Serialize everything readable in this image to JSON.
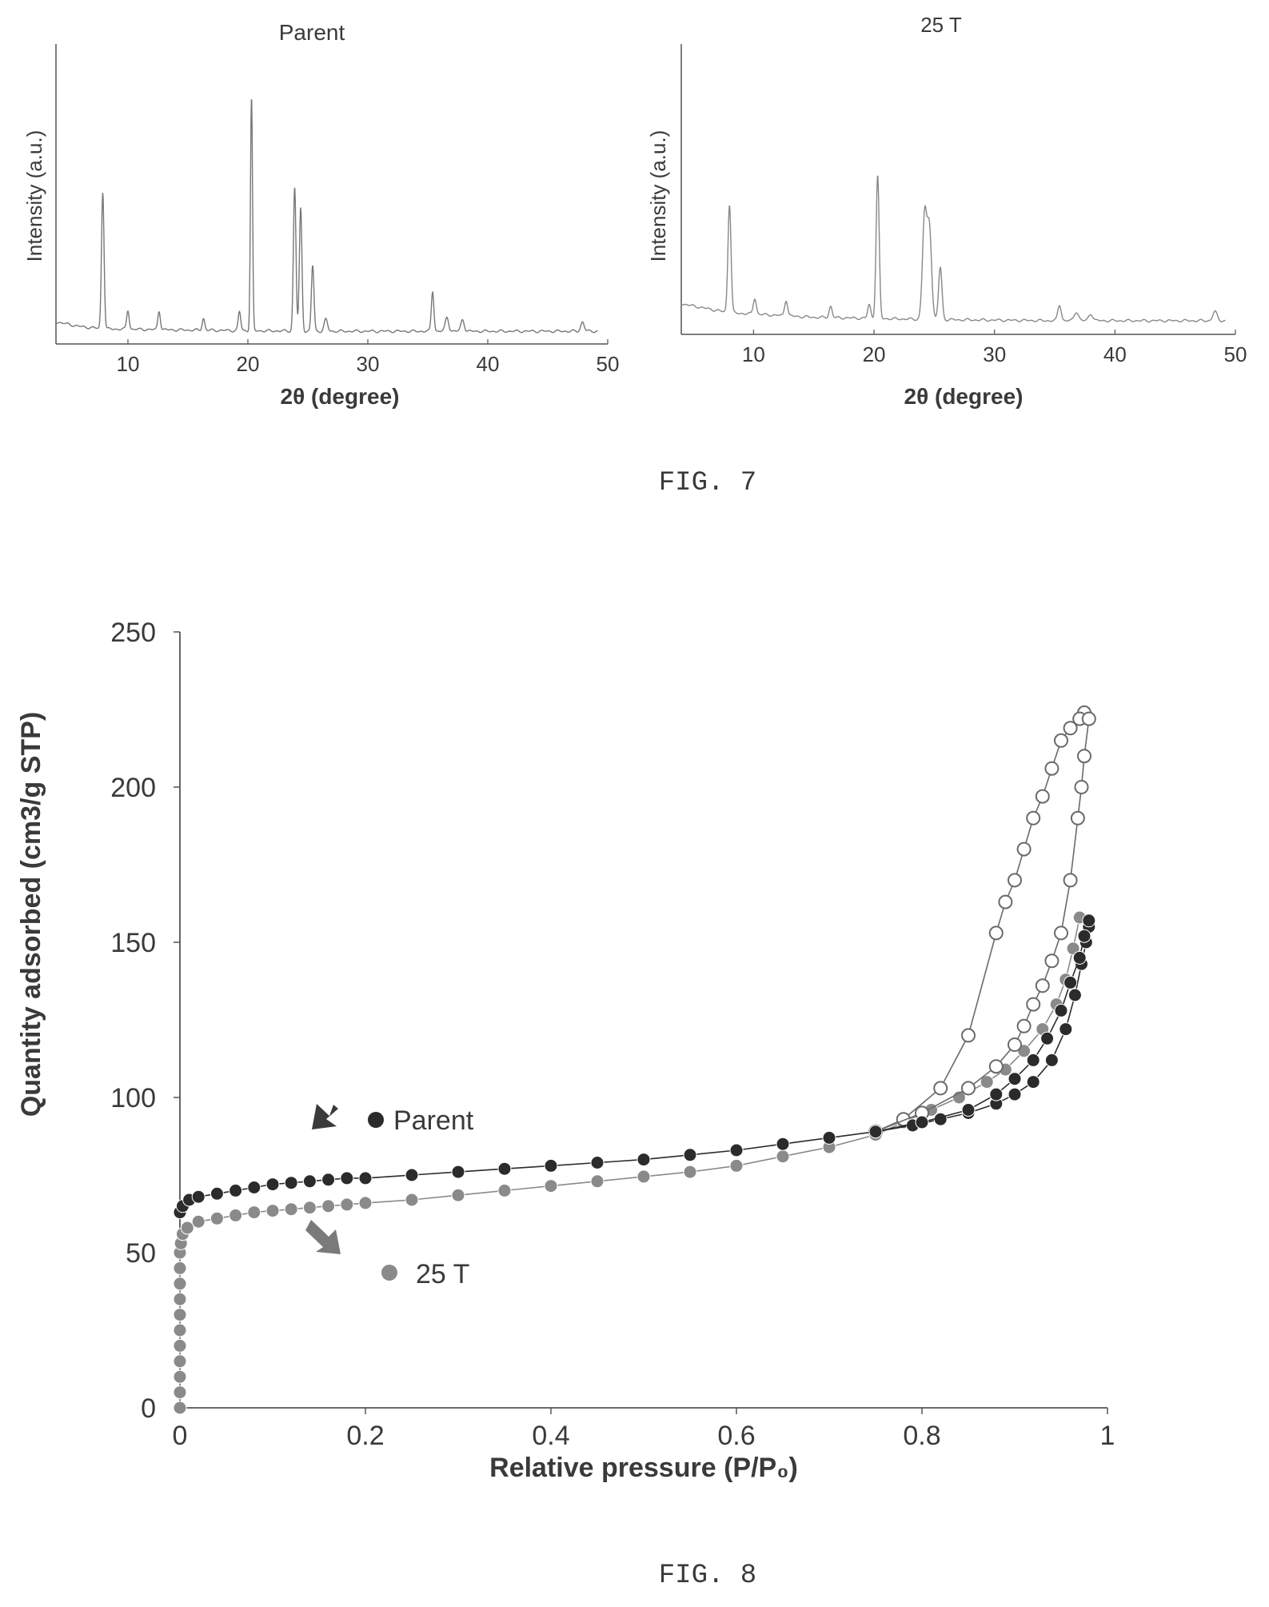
{
  "figures": [
    {
      "caption": "FIG. 7"
    },
    {
      "caption": "FIG. 8"
    }
  ],
  "colors": {
    "axis": "#555555",
    "xrd_line": "#777777",
    "parent_series": "#2b2b2b",
    "t25_series": "#8a8a8a",
    "t25_desorption": "#6a6a6a"
  },
  "chart_data": [
    {
      "type": "line",
      "title": "Parent",
      "xlabel": "2θ (degree)",
      "ylabel": "Intensity (a.u.)",
      "xlim": [
        4,
        50
      ],
      "ylim": [
        0,
        100
      ],
      "xticks": [
        10,
        20,
        30,
        40,
        50
      ],
      "baseline": [
        [
          4,
          6
        ],
        [
          6,
          4
        ],
        [
          8,
          3
        ],
        [
          15,
          2.5
        ],
        [
          25,
          2
        ],
        [
          35,
          2
        ],
        [
          45,
          2
        ],
        [
          49,
          2
        ]
      ],
      "peaks": [
        {
          "x": 7.9,
          "y": 58,
          "w": 0.15
        },
        {
          "x": 10.0,
          "y": 8,
          "w": 0.15
        },
        {
          "x": 12.6,
          "y": 8,
          "w": 0.15
        },
        {
          "x": 16.3,
          "y": 5,
          "w": 0.15
        },
        {
          "x": 19.3,
          "y": 8,
          "w": 0.15
        },
        {
          "x": 20.3,
          "y": 100,
          "w": 0.12
        },
        {
          "x": 23.9,
          "y": 61,
          "w": 0.15
        },
        {
          "x": 24.4,
          "y": 52,
          "w": 0.15
        },
        {
          "x": 25.4,
          "y": 28,
          "w": 0.15
        },
        {
          "x": 26.5,
          "y": 5,
          "w": 0.2
        },
        {
          "x": 35.4,
          "y": 17,
          "w": 0.15
        },
        {
          "x": 36.6,
          "y": 6,
          "w": 0.2
        },
        {
          "x": 37.9,
          "y": 5,
          "w": 0.2
        },
        {
          "x": 47.9,
          "y": 4,
          "w": 0.2
        }
      ]
    },
    {
      "type": "line",
      "title": "25 T",
      "xlabel": "2θ (degree)",
      "ylabel": "Intensity (a.u.)",
      "xlim": [
        4,
        50
      ],
      "ylim": [
        0,
        100
      ],
      "xticks": [
        10,
        20,
        30,
        40,
        50
      ],
      "baseline": [
        [
          4,
          10
        ],
        [
          6,
          8
        ],
        [
          8,
          6
        ],
        [
          15,
          4
        ],
        [
          25,
          3
        ],
        [
          35,
          2.5
        ],
        [
          45,
          2.5
        ],
        [
          49,
          2.5
        ]
      ],
      "peaks": [
        {
          "x": 8.0,
          "y": 48,
          "w": 0.18
        },
        {
          "x": 10.1,
          "y": 7,
          "w": 0.18
        },
        {
          "x": 12.7,
          "y": 7,
          "w": 0.18
        },
        {
          "x": 16.4,
          "y": 5,
          "w": 0.18
        },
        {
          "x": 19.6,
          "y": 6,
          "w": 0.18
        },
        {
          "x": 20.3,
          "y": 63,
          "w": 0.18
        },
        {
          "x": 24.2,
          "y": 46,
          "w": 0.25
        },
        {
          "x": 24.6,
          "y": 40,
          "w": 0.25
        },
        {
          "x": 25.5,
          "y": 23,
          "w": 0.2
        },
        {
          "x": 35.4,
          "y": 7,
          "w": 0.2
        },
        {
          "x": 36.8,
          "y": 4,
          "w": 0.25
        },
        {
          "x": 38.0,
          "y": 3,
          "w": 0.25
        },
        {
          "x": 48.3,
          "y": 4,
          "w": 0.25
        }
      ]
    },
    {
      "type": "scatter",
      "xlabel": "Relative pressure (P/P₀)",
      "ylabel": "Quantity adsorbed (cm3/g STP)",
      "xlim": [
        0,
        1
      ],
      "ylim": [
        0,
        250
      ],
      "xticks": [
        0,
        0.2,
        0.4,
        0.6,
        0.8,
        1
      ],
      "xtick_labels": [
        "0",
        "0.2",
        "0.4",
        "0.6",
        "0.8",
        "1"
      ],
      "yticks": [
        0,
        50,
        100,
        150,
        200,
        250
      ],
      "series": [
        {
          "name": "Parent",
          "marker": "filled",
          "branch": "adsorption",
          "points": [
            [
              0.0,
              63
            ],
            [
              0.003,
              65
            ],
            [
              0.01,
              67
            ],
            [
              0.02,
              68
            ],
            [
              0.04,
              69
            ],
            [
              0.06,
              70
            ],
            [
              0.08,
              71
            ],
            [
              0.1,
              72
            ],
            [
              0.12,
              72.5
            ],
            [
              0.14,
              73
            ],
            [
              0.16,
              73.5
            ],
            [
              0.18,
              74
            ],
            [
              0.2,
              74
            ],
            [
              0.25,
              75
            ],
            [
              0.3,
              76
            ],
            [
              0.35,
              77
            ],
            [
              0.4,
              78
            ],
            [
              0.45,
              79
            ],
            [
              0.5,
              80
            ],
            [
              0.55,
              81.5
            ],
            [
              0.6,
              83
            ],
            [
              0.65,
              85
            ],
            [
              0.7,
              87
            ],
            [
              0.75,
              89
            ],
            [
              0.79,
              91
            ],
            [
              0.82,
              93
            ],
            [
              0.85,
              95
            ],
            [
              0.88,
              98
            ],
            [
              0.9,
              101
            ],
            [
              0.92,
              105
            ],
            [
              0.94,
              112
            ],
            [
              0.955,
              122
            ],
            [
              0.965,
              133
            ],
            [
              0.972,
              143
            ],
            [
              0.977,
              150
            ],
            [
              0.98,
              155
            ]
          ]
        },
        {
          "name": "Parent",
          "marker": "filled",
          "branch": "desorption",
          "points": [
            [
              0.98,
              157
            ],
            [
              0.975,
              152
            ],
            [
              0.97,
              145
            ],
            [
              0.96,
              137
            ],
            [
              0.95,
              128
            ],
            [
              0.935,
              119
            ],
            [
              0.92,
              112
            ],
            [
              0.9,
              106
            ],
            [
              0.88,
              101
            ],
            [
              0.85,
              96
            ],
            [
              0.8,
              92
            ],
            [
              0.75,
              89
            ]
          ]
        },
        {
          "name": "25 T",
          "marker": "filled",
          "branch": "adsorption",
          "points": [
            [
              0.0,
              0
            ],
            [
              0.0,
              5
            ],
            [
              0.0,
              10
            ],
            [
              0.0,
              15
            ],
            [
              0.0,
              20
            ],
            [
              0.0,
              25
            ],
            [
              0.0,
              30
            ],
            [
              0.0,
              35
            ],
            [
              0.0,
              40
            ],
            [
              0.0,
              45
            ],
            [
              0.0,
              50
            ],
            [
              0.001,
              53
            ],
            [
              0.003,
              56
            ],
            [
              0.008,
              58
            ],
            [
              0.02,
              60
            ],
            [
              0.04,
              61
            ],
            [
              0.06,
              62
            ],
            [
              0.08,
              63
            ],
            [
              0.1,
              63.5
            ],
            [
              0.12,
              64
            ],
            [
              0.14,
              64.5
            ],
            [
              0.16,
              65
            ],
            [
              0.18,
              65.5
            ],
            [
              0.2,
              66
            ],
            [
              0.25,
              67
            ],
            [
              0.3,
              68.5
            ],
            [
              0.35,
              70
            ],
            [
              0.4,
              71.5
            ],
            [
              0.45,
              73
            ],
            [
              0.5,
              74.5
            ],
            [
              0.55,
              76
            ],
            [
              0.6,
              78
            ],
            [
              0.65,
              81
            ],
            [
              0.7,
              84
            ],
            [
              0.75,
              88
            ],
            [
              0.78,
              92
            ],
            [
              0.81,
              96
            ],
            [
              0.84,
              100
            ],
            [
              0.87,
              105
            ],
            [
              0.89,
              109
            ],
            [
              0.91,
              115
            ],
            [
              0.93,
              122
            ],
            [
              0.945,
              130
            ],
            [
              0.955,
              138
            ],
            [
              0.963,
              148
            ],
            [
              0.97,
              158
            ]
          ]
        },
        {
          "name": "25 T",
          "marker": "open",
          "branch": "desorption",
          "points": [
            [
              0.975,
              224
            ],
            [
              0.97,
              222
            ],
            [
              0.96,
              219
            ],
            [
              0.95,
              215
            ],
            [
              0.94,
              206
            ],
            [
              0.93,
              197
            ],
            [
              0.92,
              190
            ],
            [
              0.91,
              180
            ],
            [
              0.9,
              170
            ],
            [
              0.89,
              163
            ],
            [
              0.88,
              153
            ],
            [
              0.85,
              120
            ],
            [
              0.82,
              103
            ],
            [
              0.78,
              93
            ],
            [
              0.75,
              89
            ]
          ]
        },
        {
          "name": "25 T",
          "marker": "open",
          "branch": "desorption",
          "points": [
            [
              0.98,
              222
            ],
            [
              0.975,
              210
            ],
            [
              0.972,
              200
            ],
            [
              0.968,
              190
            ],
            [
              0.96,
              170
            ],
            [
              0.95,
              153
            ],
            [
              0.94,
              144
            ],
            [
              0.93,
              136
            ],
            [
              0.92,
              130
            ],
            [
              0.91,
              123
            ],
            [
              0.9,
              117
            ],
            [
              0.88,
              110
            ],
            [
              0.85,
              103
            ],
            [
              0.8,
              95
            ],
            [
              0.75,
              89
            ]
          ]
        }
      ],
      "annotations": [
        {
          "text": "Parent",
          "target": "Parent"
        },
        {
          "text": "25 T",
          "target": "25 T"
        }
      ]
    }
  ]
}
